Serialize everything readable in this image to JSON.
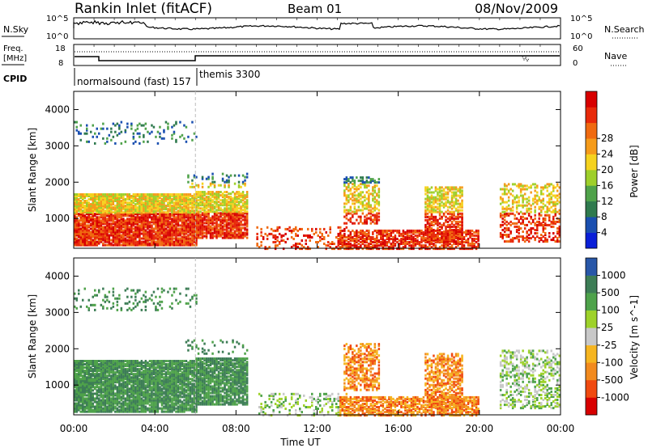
{
  "header": {
    "station": "Rankin Inlet (fitACF)",
    "beam": "Beam 01",
    "date": "08/Nov/2009"
  },
  "colors": {
    "scale": [
      "#0a1fd8",
      "#1a4fb0",
      "#2f7a4e",
      "#4fa24a",
      "#9ecf2a",
      "#f5d21e",
      "#f59b1a",
      "#f06a10",
      "#e82a0a",
      "#d80000"
    ],
    "velocity_scale": [
      "#d80000",
      "#f04a10",
      "#f28a1e",
      "#f6b520",
      "#c8c8c8",
      "#9ed22a",
      "#4ea24a",
      "#3d7d56",
      "#2857a8",
      "#1a2fb4"
    ]
  },
  "top_panels": {
    "nsky_label": "N.Sky",
    "nsky_ticks": [
      "10^5",
      "10^0"
    ],
    "nsearch_label": "N.Search",
    "nsearch_ticks": [
      "10^5",
      "10^0"
    ],
    "freq_label_1": "Freq.",
    "freq_label_2": "[MHz]",
    "freq_ticks": [
      "18",
      "8"
    ],
    "nave_label": "Nave",
    "nave_ticks": [
      "60",
      "0"
    ],
    "cpid_label": "CPID",
    "cpid_segments": [
      {
        "label": "normalsound (fast) 157",
        "start_hour": 0
      },
      {
        "label": "themis 3300",
        "start_hour": 6
      }
    ]
  },
  "chart_data": [
    {
      "type": "heatmap",
      "title": "",
      "xlabel": "Time UT",
      "ylabel": "Slant Range [km]",
      "x_ticks": [
        "00:00",
        "04:00",
        "08:00",
        "12:00",
        "16:00",
        "20:00",
        "00:00"
      ],
      "x_range_hours": [
        0,
        24
      ],
      "y_ticks": [
        1000,
        2000,
        3000,
        4000
      ],
      "ylim": [
        180,
        4500
      ],
      "colorbar": {
        "label": "Power [dB]",
        "ticks": [
          4,
          8,
          12,
          16,
          20,
          24,
          28
        ]
      }
    },
    {
      "type": "heatmap",
      "title": "",
      "xlabel": "Time UT",
      "ylabel": "Slant Range [km]",
      "x_ticks": [
        "00:00",
        "04:00",
        "08:00",
        "12:00",
        "16:00",
        "20:00",
        "00:00"
      ],
      "x_range_hours": [
        0,
        24
      ],
      "y_ticks": [
        1000,
        2000,
        3000,
        4000
      ],
      "ylim": [
        180,
        4500
      ],
      "colorbar": {
        "label": "Velocity [m s^-1]",
        "ticks": [
          1000,
          500,
          100,
          25,
          -25,
          -100,
          -500,
          -1000
        ]
      }
    }
  ]
}
